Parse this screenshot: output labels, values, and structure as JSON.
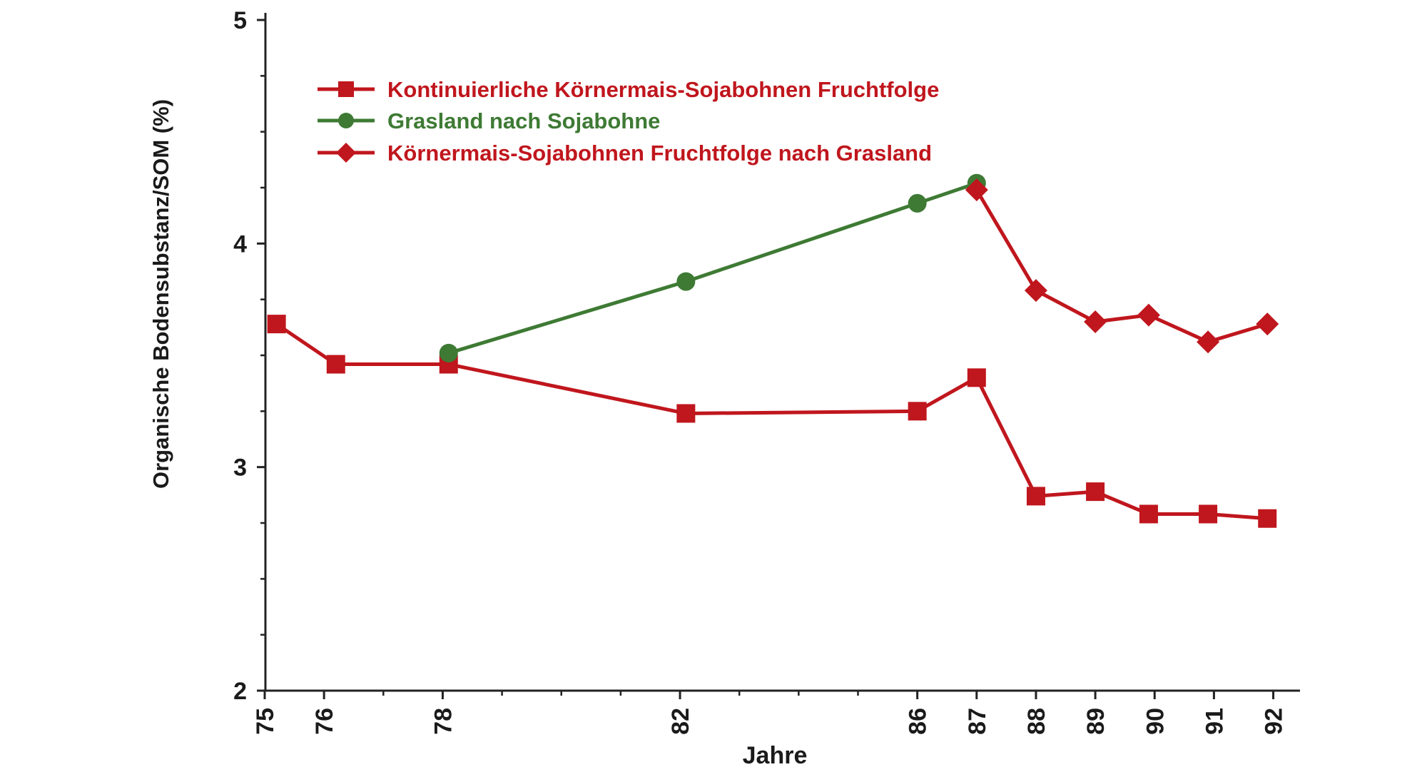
{
  "chart_data": {
    "type": "line",
    "title": "",
    "xlabel": "Jahre",
    "ylabel": "Organische Bodensubstanz/SOM (%)",
    "xlim": [
      75,
      92.4
    ],
    "ylim": [
      2,
      5
    ],
    "x_tick_labels": [
      "75",
      "76",
      "78",
      "82",
      "86",
      "87",
      "88",
      "89",
      "90",
      "91",
      "92"
    ],
    "x_tick_values": [
      75,
      76,
      78,
      82,
      86,
      87,
      88,
      89,
      90,
      91,
      92
    ],
    "x_minor_ticks": [
      77,
      79,
      80,
      81,
      83,
      84,
      85
    ],
    "y_tick_labels": [
      "2",
      "3",
      "4",
      "5"
    ],
    "y_tick_values": [
      2,
      3,
      4,
      5
    ],
    "y_minor_ticks": [
      2.25,
      2.5,
      2.75,
      3.25,
      3.5,
      3.75,
      4.25,
      4.5,
      4.75
    ],
    "grid": false,
    "legend_position": "top-left",
    "series": [
      {
        "name": "Kontinuierliche Körnermais-Sojabohnen Fruchtfolge",
        "marker": "square",
        "color": "#c0161d",
        "points": [
          {
            "x": 75.2,
            "y": 3.64
          },
          {
            "x": 76.2,
            "y": 3.46
          },
          {
            "x": 78.1,
            "y": 3.46
          },
          {
            "x": 82.1,
            "y": 3.24
          },
          {
            "x": 86.0,
            "y": 3.25
          },
          {
            "x": 87.0,
            "y": 3.4
          },
          {
            "x": 88.0,
            "y": 2.87
          },
          {
            "x": 89.0,
            "y": 2.89
          },
          {
            "x": 89.9,
            "y": 2.79
          },
          {
            "x": 90.9,
            "y": 2.79
          },
          {
            "x": 91.9,
            "y": 2.77
          }
        ]
      },
      {
        "name": "Grasland nach Sojabohne",
        "marker": "circle",
        "color": "#3e7a34",
        "points": [
          {
            "x": 78.1,
            "y": 3.51
          },
          {
            "x": 82.1,
            "y": 3.83
          },
          {
            "x": 86.0,
            "y": 4.18
          },
          {
            "x": 87.0,
            "y": 4.27
          }
        ]
      },
      {
        "name": "Körnermais-Sojabohnen Fruchtfolge nach Grasland",
        "marker": "diamond",
        "color": "#c0161d",
        "points": [
          {
            "x": 87.0,
            "y": 4.24
          },
          {
            "x": 88.0,
            "y": 3.79
          },
          {
            "x": 89.0,
            "y": 3.65
          },
          {
            "x": 89.9,
            "y": 3.68
          },
          {
            "x": 90.9,
            "y": 3.56
          },
          {
            "x": 91.9,
            "y": 3.64
          }
        ]
      }
    ]
  }
}
